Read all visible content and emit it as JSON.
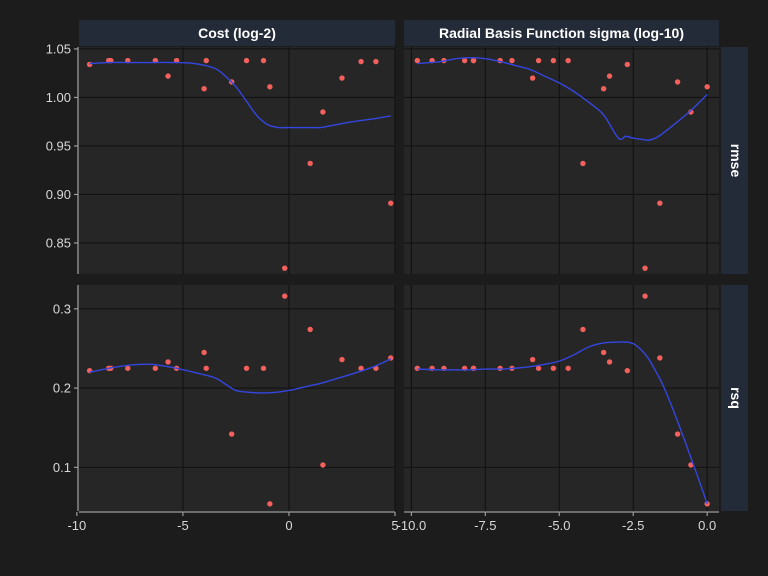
{
  "chart_data": {
    "type": "scatter",
    "title": "",
    "xlabel": "",
    "ylabel": "",
    "grid": true,
    "legend": "none",
    "colors": {
      "background": "#1c1c1c",
      "panel": "#262626",
      "grid": "#121212",
      "strip": "#232a38",
      "point": "#f4615d",
      "smooth": "#3446e0",
      "axis": "#9c9c9c"
    },
    "columns": [
      {
        "name": "Cost (log-2)",
        "xlim": [
          -9.9,
          5.0
        ],
        "xticks": [
          -10,
          -5,
          0,
          5
        ],
        "xtick_labels": [
          "-10",
          "-5",
          "0",
          "5"
        ],
        "x": [
          -9.4,
          -8.5,
          -8.4,
          -7.6,
          -6.3,
          -5.7,
          -5.3,
          -4.0,
          -3.9,
          -2.0,
          -2.7,
          -1.2,
          -0.9,
          -0.2,
          1.0,
          1.6,
          2.5,
          3.4,
          4.1,
          4.8
        ]
      },
      {
        "name": "Radial Basis Function sigma (log-10)",
        "xlim": [
          -10.25,
          0.4
        ],
        "xticks": [
          -10.0,
          -7.5,
          -5.0,
          -2.5,
          0.0
        ],
        "xtick_labels": [
          "-10.0",
          "-7.5",
          "-5.0",
          "-2.5",
          "0.0"
        ],
        "x": [
          -9.8,
          -9.3,
          -8.9,
          -8.2,
          -7.9,
          -7.9,
          -7.0,
          -6.6,
          -5.9,
          -5.7,
          -5.2,
          -4.7,
          -4.2,
          -3.5,
          -3.3,
          -2.7,
          -2.1,
          -1.6,
          -1.0,
          -0.55,
          0.0
        ]
      }
    ],
    "rows": [
      {
        "name": "rmse",
        "ylim": [
          0.818,
          1.052
        ],
        "yticks": [
          0.85,
          0.9,
          0.95,
          1.0,
          1.05
        ],
        "ytick_labels": [
          "0.85",
          "0.90",
          "0.95",
          "1.00",
          "1.05"
        ]
      },
      {
        "name": "rsq",
        "ylim": [
          0.045,
          0.33
        ],
        "yticks": [
          0.1,
          0.2,
          0.3
        ],
        "ytick_labels": [
          "0.1",
          "0.2",
          "0.3"
        ]
      }
    ],
    "panels": [
      {
        "row": "rmse",
        "column": "Cost (log-2)",
        "y": [
          1.034,
          1.038,
          1.038,
          1.038,
          1.038,
          1.022,
          1.038,
          1.009,
          1.038,
          1.038,
          1.016,
          1.038,
          1.011,
          0.824,
          0.932,
          0.985,
          1.02,
          1.037,
          1.037,
          0.891
        ],
        "smooth": {
          "x": [
            -9.4,
            -8.5,
            -7.5,
            -6.5,
            -5.5,
            -4.5,
            -3.5,
            -3.0,
            -2.5,
            -2.0,
            -1.5,
            -1.0,
            -0.5,
            0.0,
            0.5,
            1.0,
            1.5,
            2.0,
            3.0,
            4.0,
            4.8
          ],
          "y": [
            1.035,
            1.036,
            1.036,
            1.036,
            1.036,
            1.035,
            1.03,
            1.022,
            1.011,
            0.996,
            0.981,
            0.972,
            0.969,
            0.969,
            0.969,
            0.969,
            0.969,
            0.971,
            0.975,
            0.978,
            0.981
          ]
        }
      },
      {
        "row": "rmse",
        "column": "Radial Basis Function sigma (log-10)",
        "y": [
          1.038,
          1.038,
          1.038,
          1.038,
          1.038,
          1.038,
          1.038,
          1.038,
          1.02,
          1.038,
          1.038,
          1.038,
          0.932,
          1.009,
          1.022,
          1.034,
          0.824,
          0.891,
          1.016,
          0.985,
          1.011
        ],
        "smooth": {
          "x": [
            -9.8,
            -9.0,
            -8.5,
            -8.0,
            -7.5,
            -7.0,
            -6.5,
            -6.0,
            -5.5,
            -5.0,
            -4.5,
            -4.0,
            -3.5,
            -3.0,
            -2.75,
            -2.5,
            -2.25,
            -2.0,
            -1.75,
            -1.5,
            -1.0,
            -0.5,
            0.0
          ],
          "y": [
            1.035,
            1.037,
            1.04,
            1.041,
            1.04,
            1.037,
            1.033,
            1.029,
            1.022,
            1.015,
            1.006,
            0.995,
            0.982,
            0.958,
            0.96,
            0.958,
            0.957,
            0.956,
            0.958,
            0.963,
            0.975,
            0.988,
            1.003
          ]
        }
      },
      {
        "row": "rsq",
        "column": "Cost (log-2)",
        "y": [
          0.222,
          0.225,
          0.225,
          0.225,
          0.225,
          0.233,
          0.225,
          0.245,
          0.225,
          0.225,
          0.142,
          0.225,
          0.054,
          0.316,
          0.274,
          0.103,
          0.236,
          0.225,
          0.225,
          0.238
        ],
        "smooth": {
          "x": [
            -9.4,
            -8.5,
            -7.5,
            -6.5,
            -5.5,
            -4.5,
            -3.5,
            -3.0,
            -2.5,
            -2.0,
            -1.5,
            -1.0,
            -0.5,
            0.0,
            0.5,
            1.0,
            1.5,
            2.0,
            3.0,
            4.0,
            4.8
          ],
          "y": [
            0.22,
            0.225,
            0.229,
            0.23,
            0.226,
            0.22,
            0.213,
            0.205,
            0.197,
            0.195,
            0.194,
            0.194,
            0.195,
            0.197,
            0.2,
            0.203,
            0.206,
            0.21,
            0.218,
            0.227,
            0.237
          ]
        }
      },
      {
        "row": "rsq",
        "column": "Radial Basis Function sigma (log-10)",
        "y": [
          0.225,
          0.225,
          0.225,
          0.225,
          0.225,
          0.225,
          0.225,
          0.225,
          0.236,
          0.225,
          0.225,
          0.225,
          0.274,
          0.245,
          0.233,
          0.222,
          0.316,
          0.238,
          0.142,
          0.103,
          0.054
        ],
        "smooth": {
          "x": [
            -9.8,
            -9.0,
            -8.5,
            -8.0,
            -7.5,
            -7.0,
            -6.5,
            -6.0,
            -5.5,
            -5.0,
            -4.5,
            -4.0,
            -3.5,
            -3.0,
            -2.75,
            -2.5,
            -2.25,
            -2.0,
            -1.75,
            -1.5,
            -1.25,
            -1.0,
            -0.75,
            -0.5,
            -0.25,
            0.0
          ],
          "y": [
            0.224,
            0.223,
            0.223,
            0.223,
            0.224,
            0.224,
            0.225,
            0.227,
            0.23,
            0.234,
            0.242,
            0.252,
            0.257,
            0.258,
            0.258,
            0.256,
            0.249,
            0.238,
            0.222,
            0.204,
            0.182,
            0.158,
            0.133,
            0.107,
            0.081,
            0.054
          ]
        }
      }
    ]
  }
}
